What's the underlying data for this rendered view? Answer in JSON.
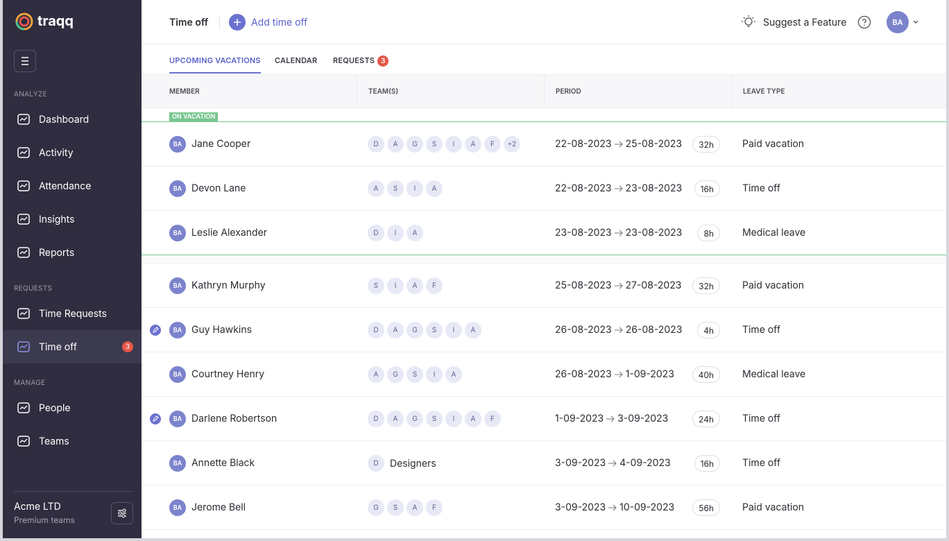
{
  "sidebar": {
    "brand": "traqq",
    "sections": [
      {
        "title": "ANALYZE",
        "items": [
          {
            "label": "Dashboard"
          },
          {
            "label": "Activity"
          },
          {
            "label": "Attendance"
          },
          {
            "label": "Insights"
          },
          {
            "label": "Reports"
          }
        ]
      },
      {
        "title": "REQUESTS",
        "items": [
          {
            "label": "Time Requests"
          },
          {
            "label": "Time off",
            "badge": "3",
            "active": true
          }
        ]
      },
      {
        "title": "MANAGE",
        "items": [
          {
            "label": "People"
          },
          {
            "label": "Teams"
          }
        ]
      }
    ],
    "company": "Acme LTD",
    "plan": "Premium teams"
  },
  "header": {
    "title": "Time off",
    "add_button": "Add time off",
    "suggest": "Suggest a Feature",
    "avatar": "BA"
  },
  "tabs": [
    {
      "label": "UPCOMING VACATIONS",
      "active": true
    },
    {
      "label": "CALENDAR"
    },
    {
      "label": "REQUESTS",
      "badge": "3"
    }
  ],
  "table": {
    "columns": [
      "MEMBER",
      "TEAM(S)",
      "PERIOD",
      "LEAVE TYPE"
    ],
    "on_vacation_label": "ON VACATION",
    "rows": [
      {
        "avatar": "BA",
        "name": "Jane Cooper",
        "teams": [
          "D",
          "A",
          "G",
          "S",
          "I",
          "A",
          "F",
          "+2"
        ],
        "from": "22-08-2023",
        "to": "25-08-2023",
        "hours": "32h",
        "leave_type": "Paid vacation",
        "on_vacation": true
      },
      {
        "avatar": "BA",
        "name": "Devon Lane",
        "teams": [
          "A",
          "S",
          "I",
          "A"
        ],
        "from": "22-08-2023",
        "to": "23-08-2023",
        "hours": "16h",
        "leave_type": "Time off",
        "on_vacation": true
      },
      {
        "avatar": "BA",
        "name": "Leslie Alexander",
        "teams": [
          "D",
          "I",
          "A"
        ],
        "from": "23-08-2023",
        "to": "23-08-2023",
        "hours": "8h",
        "leave_type": "Medical leave",
        "on_vacation": true
      },
      {
        "avatar": "BA",
        "name": "Kathryn Murphy",
        "teams": [
          "S",
          "I",
          "A",
          "F"
        ],
        "from": "25-08-2023",
        "to": "27-08-2023",
        "hours": "32h",
        "leave_type": "Paid vacation"
      },
      {
        "avatar": "BA",
        "name": "Guy Hawkins",
        "teams": [
          "D",
          "A",
          "G",
          "S",
          "I",
          "A"
        ],
        "from": "26-08-2023",
        "to": "26-08-2023",
        "hours": "4h",
        "leave_type": "Time off",
        "editable": true
      },
      {
        "avatar": "BA",
        "name": "Courtney Henry",
        "teams": [
          "A",
          "G",
          "S",
          "I",
          "A"
        ],
        "from": "26-08-2023",
        "to": "1-09-2023",
        "hours": "40h",
        "leave_type": "Medical leave"
      },
      {
        "avatar": "BA",
        "name": "Darlene Robertson",
        "teams": [
          "D",
          "A",
          "G",
          "S",
          "I",
          "A",
          "F"
        ],
        "from": "1-09-2023",
        "to": "3-09-2023",
        "hours": "24h",
        "leave_type": "Time off",
        "editable": true
      },
      {
        "avatar": "BA",
        "name": "Annette Black",
        "teams": [
          "D"
        ],
        "team_name": "Designers",
        "from": "3-09-2023",
        "to": "4-09-2023",
        "hours": "16h",
        "leave_type": "Time off"
      },
      {
        "avatar": "BA",
        "name": "Jerome Bell",
        "teams": [
          "G",
          "S",
          "A",
          "F"
        ],
        "from": "3-09-2023",
        "to": "10-09-2023",
        "hours": "56h",
        "leave_type": "Paid vacation"
      }
    ]
  }
}
